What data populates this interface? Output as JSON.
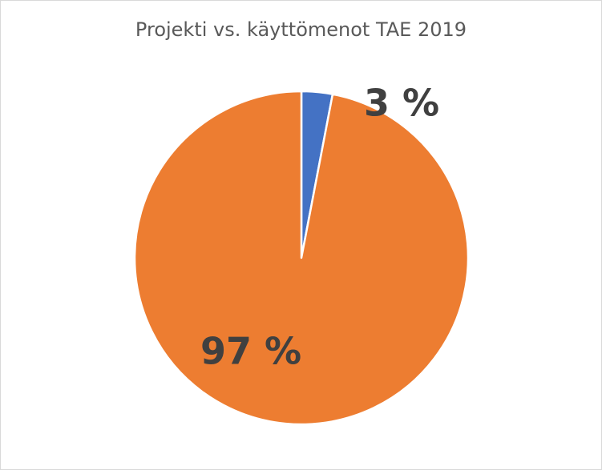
{
  "chart_data": {
    "type": "pie",
    "title": "Projekti vs. käyttömenot TAE 2019",
    "slices": [
      {
        "value": 3,
        "label": "3 %",
        "color": "#4472C4"
      },
      {
        "value": 97,
        "label": "97 %",
        "color": "#ED7D31"
      }
    ],
    "start_angle_deg": 0,
    "direction": "clockwise",
    "legend": "none"
  }
}
